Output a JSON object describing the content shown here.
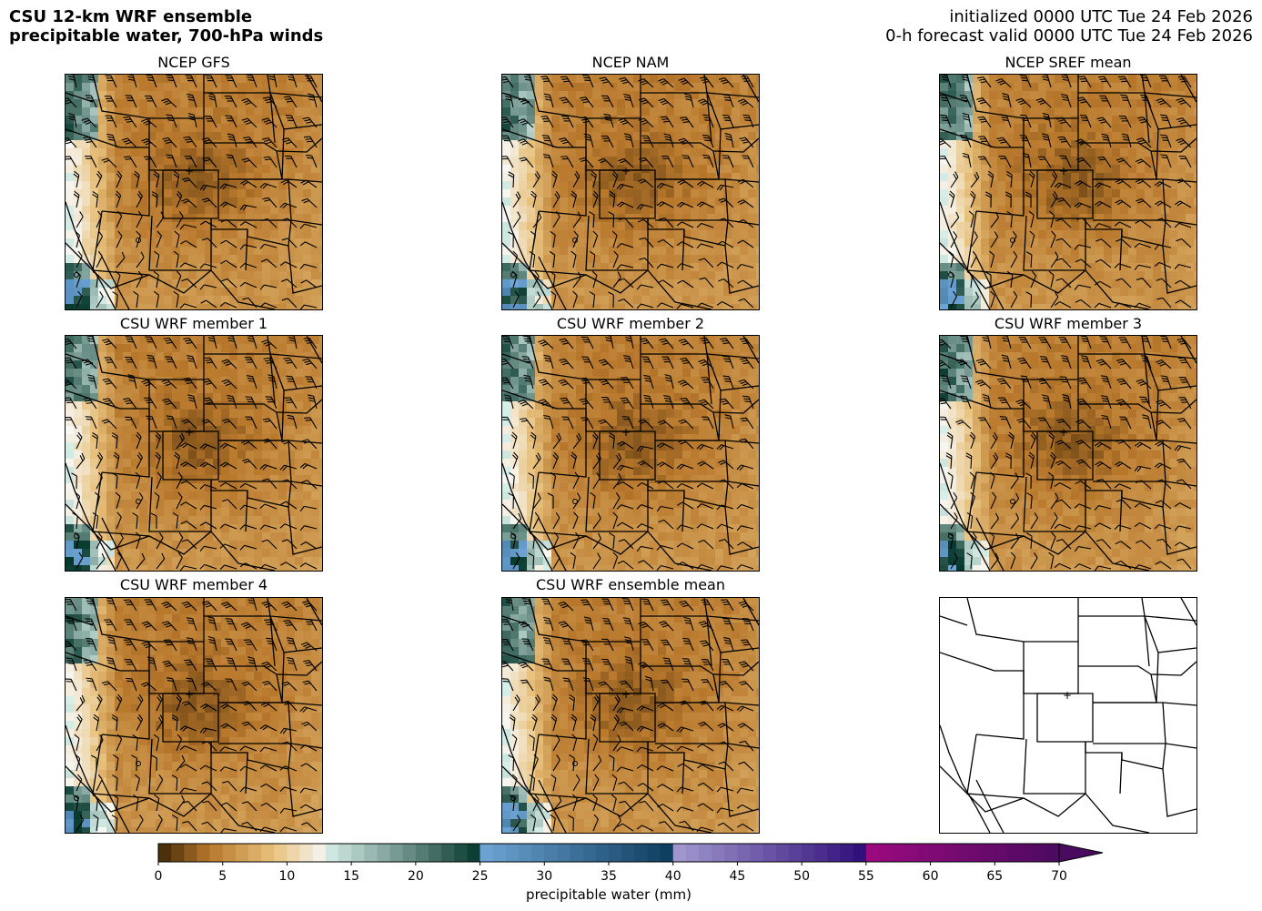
{
  "header": {
    "title_line1": "CSU 12-km WRF ensemble",
    "title_line2": "precipitable water, 700-hPa winds",
    "init_line": "initialized 0000 UTC Tue 24 Feb 2026",
    "valid_line": "0-h forecast valid 0000 UTC Tue 24 Feb 2026"
  },
  "panels": [
    {
      "title": "NCEP GFS"
    },
    {
      "title": "NCEP NAM"
    },
    {
      "title": "NCEP SREF mean"
    },
    {
      "title": "CSU WRF member 1"
    },
    {
      "title": "CSU WRF member 2"
    },
    {
      "title": "CSU WRF member 3"
    },
    {
      "title": "CSU WRF member 4"
    },
    {
      "title": "CSU WRF ensemble mean"
    },
    {
      "title": ""
    }
  ],
  "colorbar": {
    "label": "precipitable water (mm)",
    "ticks": [
      "0",
      "5",
      "10",
      "15",
      "20",
      "25",
      "30",
      "35",
      "40",
      "45",
      "50",
      "55",
      "60",
      "65",
      "70"
    ],
    "range": [
      0,
      70
    ],
    "extend": "max",
    "colors": {
      "brown_dark": "#3d2406",
      "brown": "#b8782c",
      "tan": "#e8c27e",
      "white": "#f7f7f4",
      "teal": "#5ab4a2",
      "teal_dark": "#05372c",
      "blue_light": "#6fa6d6",
      "blue_dark": "#0b3a5c",
      "purple_light": "#a49bd0",
      "purple_dark": "#2e0b78",
      "magenta": "#9c0a80",
      "magenta_dark": "#4a0a60"
    }
  }
}
